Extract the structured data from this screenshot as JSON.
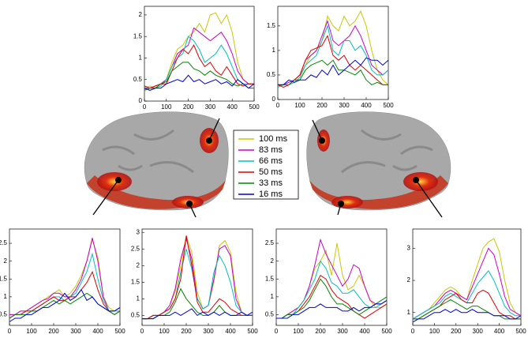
{
  "legend": [
    {
      "name": "100 ms",
      "color": "#c8c800"
    },
    {
      "name": "83 ms",
      "color": "#cc00cc"
    },
    {
      "name": "66 ms",
      "color": "#00c0c0"
    },
    {
      "name": "50 ms",
      "color": "#e00000"
    },
    {
      "name": "33 ms",
      "color": "#008800"
    },
    {
      "name": "16 ms",
      "color": "#0000e0"
    }
  ],
  "chart_data": [
    {
      "type": "line",
      "x": [
        0,
        25,
        50,
        75,
        100,
        125,
        150,
        175,
        200,
        225,
        250,
        275,
        300,
        325,
        350,
        375,
        400,
        425,
        450,
        475,
        500
      ],
      "xlim": [
        0,
        500
      ],
      "xticks": [
        0,
        100,
        200,
        300,
        400,
        500
      ],
      "ylim": [
        0,
        2.2
      ],
      "yticks": [
        0,
        0.5,
        1,
        1.5,
        2
      ],
      "series": [
        {
          "values": [
            0.3,
            0.35,
            0.3,
            0.4,
            0.5,
            0.9,
            1.2,
            1.3,
            1.5,
            1.6,
            1.8,
            1.6,
            2.0,
            2.05,
            1.8,
            2.0,
            1.6,
            0.9,
            0.5,
            0.4,
            0.4
          ]
        },
        {
          "values": [
            0.3,
            0.3,
            0.35,
            0.4,
            0.5,
            0.8,
            1.1,
            1.2,
            1.3,
            1.7,
            1.6,
            1.5,
            1.4,
            1.5,
            1.6,
            1.4,
            1.1,
            0.7,
            0.5,
            0.4,
            0.4
          ]
        },
        {
          "values": [
            0.3,
            0.3,
            0.3,
            0.35,
            0.5,
            0.8,
            1.0,
            1.1,
            1.5,
            1.4,
            1.2,
            0.9,
            1.0,
            1.1,
            1.3,
            1.1,
            0.8,
            0.5,
            0.4,
            0.4,
            0.4
          ]
        },
        {
          "values": [
            0.35,
            0.3,
            0.35,
            0.4,
            0.4,
            0.7,
            1.0,
            1.2,
            1.1,
            1.3,
            1.0,
            0.8,
            0.9,
            0.7,
            0.6,
            0.8,
            0.6,
            0.4,
            0.35,
            0.4,
            0.4
          ]
        },
        {
          "values": [
            0.25,
            0.3,
            0.3,
            0.4,
            0.45,
            0.7,
            0.8,
            0.9,
            0.9,
            0.75,
            0.7,
            0.6,
            0.7,
            0.6,
            0.55,
            0.5,
            0.4,
            0.35,
            0.4,
            0.3,
            0.3
          ]
        },
        {
          "values": [
            0.3,
            0.25,
            0.3,
            0.3,
            0.4,
            0.45,
            0.5,
            0.45,
            0.6,
            0.45,
            0.5,
            0.4,
            0.45,
            0.5,
            0.4,
            0.45,
            0.35,
            0.5,
            0.4,
            0.3,
            0.4
          ]
        }
      ]
    },
    {
      "type": "line",
      "x": [
        0,
        25,
        50,
        75,
        100,
        125,
        150,
        175,
        200,
        225,
        250,
        275,
        300,
        325,
        350,
        375,
        400,
        425,
        450,
        475,
        500
      ],
      "xlim": [
        0,
        500
      ],
      "xticks": [
        0,
        100,
        200,
        300,
        400,
        500
      ],
      "ylim": [
        0,
        1.9
      ],
      "yticks": [
        0,
        0.5,
        1,
        1.5
      ],
      "series": [
        {
          "values": [
            0.3,
            0.3,
            0.35,
            0.4,
            0.5,
            0.7,
            0.9,
            1.0,
            1.2,
            1.7,
            1.5,
            1.4,
            1.7,
            1.5,
            1.6,
            1.8,
            1.5,
            1.0,
            0.6,
            0.4,
            0.3
          ]
        },
        {
          "values": [
            0.3,
            0.3,
            0.35,
            0.4,
            0.5,
            0.8,
            0.9,
            1.0,
            1.3,
            1.6,
            1.2,
            1.1,
            1.2,
            1.3,
            1.5,
            1.3,
            1.0,
            0.7,
            0.6,
            0.5,
            0.6
          ]
        },
        {
          "values": [
            0.25,
            0.3,
            0.3,
            0.35,
            0.45,
            0.7,
            0.8,
            0.9,
            1.2,
            1.5,
            1.0,
            0.9,
            1.2,
            1.2,
            1.0,
            1.1,
            0.9,
            0.6,
            0.5,
            0.5,
            0.6
          ]
        },
        {
          "values": [
            0.3,
            0.25,
            0.3,
            0.4,
            0.5,
            0.8,
            1.0,
            1.05,
            1.1,
            1.3,
            0.9,
            0.8,
            0.9,
            0.7,
            0.6,
            0.7,
            0.6,
            0.5,
            0.4,
            0.3,
            0.3
          ]
        },
        {
          "values": [
            0.3,
            0.3,
            0.3,
            0.4,
            0.4,
            0.6,
            0.7,
            0.75,
            0.8,
            0.7,
            0.8,
            0.6,
            0.6,
            0.55,
            0.5,
            0.6,
            0.4,
            0.3,
            0.35,
            0.3,
            0.3
          ]
        },
        {
          "values": [
            0.3,
            0.3,
            0.4,
            0.35,
            0.4,
            0.4,
            0.5,
            0.45,
            0.6,
            0.5,
            0.7,
            0.5,
            0.6,
            0.7,
            0.8,
            0.7,
            0.85,
            0.8,
            0.8,
            0.7,
            0.8
          ]
        }
      ]
    },
    {
      "type": "line",
      "x": [
        0,
        25,
        50,
        75,
        100,
        125,
        150,
        175,
        200,
        225,
        250,
        275,
        300,
        325,
        350,
        375,
        400,
        425,
        450,
        475,
        500
      ],
      "xlim": [
        0,
        500
      ],
      "xticks": [
        0,
        100,
        200,
        300,
        400,
        500
      ],
      "ylim": [
        0.2,
        2.9
      ],
      "yticks": [
        0.5,
        1,
        1.5,
        2,
        2.5
      ],
      "series": [
        {
          "values": [
            0.5,
            0.5,
            0.6,
            0.6,
            0.7,
            0.8,
            0.9,
            1.0,
            1.1,
            1.2,
            1.0,
            1.1,
            1.3,
            1.6,
            2.0,
            2.6,
            2.1,
            1.0,
            0.7,
            0.6,
            0.7
          ]
        },
        {
          "values": [
            0.5,
            0.5,
            0.6,
            0.6,
            0.7,
            0.8,
            0.9,
            0.95,
            1.1,
            1.1,
            1.0,
            1.0,
            1.2,
            1.5,
            2.0,
            2.65,
            2.0,
            1.0,
            0.6,
            0.6,
            0.7
          ]
        },
        {
          "values": [
            0.4,
            0.5,
            0.5,
            0.6,
            0.6,
            0.7,
            0.8,
            0.9,
            1.0,
            1.0,
            0.9,
            1.0,
            1.1,
            1.4,
            1.7,
            2.2,
            1.5,
            0.9,
            0.6,
            0.6,
            0.6
          ]
        },
        {
          "values": [
            0.4,
            0.5,
            0.5,
            0.6,
            0.6,
            0.7,
            0.8,
            0.9,
            1.0,
            0.9,
            0.9,
            1.0,
            1.0,
            1.2,
            1.4,
            1.7,
            1.2,
            0.8,
            0.6,
            0.5,
            0.6
          ]
        },
        {
          "values": [
            0.4,
            0.5,
            0.5,
            0.5,
            0.6,
            0.6,
            0.7,
            0.8,
            0.9,
            0.8,
            0.9,
            0.8,
            0.9,
            1.0,
            1.1,
            1.0,
            0.8,
            0.7,
            0.6,
            0.5,
            0.6
          ]
        },
        {
          "values": [
            0.3,
            0.4,
            0.4,
            0.5,
            0.5,
            0.6,
            0.7,
            0.7,
            0.8,
            0.9,
            1.1,
            0.9,
            1.0,
            1.2,
            0.9,
            1.0,
            0.8,
            0.7,
            0.6,
            0.6,
            0.7
          ]
        }
      ]
    },
    {
      "type": "line",
      "x": [
        0,
        25,
        50,
        75,
        100,
        125,
        150,
        175,
        200,
        225,
        250,
        275,
        300,
        325,
        350,
        375,
        400,
        425,
        450,
        475,
        500
      ],
      "xlim": [
        0,
        500
      ],
      "xticks": [
        0,
        100,
        200,
        300,
        400,
        500
      ],
      "ylim": [
        0.2,
        3.1
      ],
      "yticks": [
        0.5,
        1,
        1.5,
        2,
        2.5,
        3
      ],
      "series": [
        {
          "values": [
            0.4,
            0.4,
            0.5,
            0.5,
            0.6,
            0.8,
            1.2,
            2.0,
            2.9,
            2.4,
            1.2,
            0.7,
            0.8,
            1.5,
            2.6,
            2.75,
            2.4,
            1.2,
            0.6,
            0.5,
            0.5
          ]
        },
        {
          "values": [
            0.4,
            0.4,
            0.5,
            0.5,
            0.6,
            0.8,
            1.3,
            2.2,
            2.8,
            2.2,
            1.0,
            0.7,
            0.8,
            1.6,
            2.5,
            2.6,
            2.3,
            1.0,
            0.6,
            0.5,
            0.5
          ]
        },
        {
          "values": [
            0.4,
            0.4,
            0.5,
            0.5,
            0.6,
            0.7,
            1.0,
            1.8,
            2.5,
            1.9,
            1.0,
            0.7,
            0.8,
            1.8,
            2.3,
            2.0,
            1.5,
            0.8,
            0.6,
            0.5,
            0.5
          ]
        },
        {
          "values": [
            0.4,
            0.4,
            0.5,
            0.5,
            0.6,
            0.7,
            1.0,
            1.6,
            2.9,
            2.0,
            0.9,
            0.6,
            0.6,
            0.8,
            1.0,
            0.9,
            0.7,
            0.6,
            0.5,
            0.5,
            0.5
          ]
        },
        {
          "values": [
            0.4,
            0.4,
            0.4,
            0.5,
            0.5,
            0.6,
            0.9,
            1.3,
            1.0,
            0.8,
            0.6,
            0.5,
            0.5,
            0.6,
            0.8,
            0.6,
            0.5,
            0.5,
            0.5,
            0.5,
            0.5
          ]
        },
        {
          "values": [
            0.4,
            0.4,
            0.4,
            0.5,
            0.5,
            0.5,
            0.6,
            0.5,
            0.6,
            0.7,
            0.5,
            0.6,
            0.5,
            0.6,
            0.5,
            0.6,
            0.5,
            0.5,
            0.6,
            0.5,
            0.6
          ]
        }
      ]
    },
    {
      "type": "line",
      "x": [
        0,
        25,
        50,
        75,
        100,
        125,
        150,
        175,
        200,
        225,
        250,
        275,
        300,
        325,
        350,
        375,
        400,
        425,
        450,
        475,
        500
      ],
      "xlim": [
        0,
        500
      ],
      "xticks": [
        0,
        100,
        200,
        300,
        400,
        500
      ],
      "ylim": [
        0.2,
        2.9
      ],
      "yticks": [
        0.5,
        1,
        1.5,
        2,
        2.5
      ],
      "series": [
        {
          "values": [
            0.4,
            0.4,
            0.5,
            0.6,
            0.7,
            0.9,
            1.3,
            1.8,
            2.0,
            2.3,
            1.6,
            2.5,
            1.6,
            1.2,
            1.3,
            1.6,
            1.3,
            0.9,
            0.7,
            0.7,
            0.8
          ]
        },
        {
          "values": [
            0.4,
            0.4,
            0.5,
            0.6,
            0.7,
            0.9,
            1.3,
            1.9,
            2.6,
            2.2,
            1.9,
            1.6,
            1.3,
            1.5,
            1.9,
            1.8,
            1.3,
            0.9,
            0.8,
            0.8,
            0.9
          ]
        },
        {
          "values": [
            0.4,
            0.4,
            0.5,
            0.5,
            0.7,
            0.9,
            1.2,
            1.5,
            2.0,
            1.8,
            1.4,
            1.3,
            1.1,
            1.1,
            1.2,
            1.0,
            0.8,
            0.7,
            0.7,
            0.8,
            0.9
          ]
        },
        {
          "values": [
            0.4,
            0.4,
            0.5,
            0.5,
            0.6,
            0.8,
            1.0,
            1.3,
            1.6,
            1.5,
            1.2,
            1.0,
            0.9,
            0.8,
            0.6,
            0.5,
            0.4,
            0.5,
            0.6,
            0.7,
            0.8
          ]
        },
        {
          "values": [
            0.4,
            0.4,
            0.5,
            0.5,
            0.6,
            0.7,
            0.9,
            1.2,
            1.5,
            1.3,
            1.0,
            0.8,
            0.8,
            0.7,
            0.6,
            0.5,
            0.6,
            0.7,
            0.8,
            0.9,
            1.0
          ]
        },
        {
          "values": [
            0.4,
            0.4,
            0.4,
            0.5,
            0.5,
            0.6,
            0.7,
            0.7,
            0.8,
            0.7,
            0.7,
            0.7,
            0.6,
            0.6,
            0.7,
            0.6,
            0.7,
            0.7,
            0.8,
            0.8,
            0.9
          ]
        }
      ]
    },
    {
      "type": "line",
      "x": [
        0,
        25,
        50,
        75,
        100,
        125,
        150,
        175,
        200,
        225,
        250,
        275,
        300,
        325,
        350,
        375,
        400,
        425,
        450,
        475,
        500
      ],
      "xlim": [
        0,
        500
      ],
      "xticks": [
        0,
        100,
        200,
        300,
        400,
        500
      ],
      "ylim": [
        0.6,
        3.6
      ],
      "yticks": [
        1,
        2,
        3
      ],
      "series": [
        {
          "values": [
            0.8,
            0.9,
            1.0,
            1.1,
            1.3,
            1.5,
            1.7,
            1.8,
            1.7,
            1.5,
            1.4,
            2.0,
            2.5,
            3.0,
            3.2,
            3.3,
            2.9,
            2.0,
            1.3,
            1.0,
            0.9
          ]
        },
        {
          "values": [
            0.8,
            0.9,
            1.0,
            1.1,
            1.2,
            1.4,
            1.6,
            1.7,
            1.6,
            1.5,
            1.4,
            1.8,
            2.2,
            2.6,
            3.0,
            2.8,
            2.2,
            1.5,
            1.1,
            1.0,
            0.9
          ]
        },
        {
          "values": [
            0.8,
            0.9,
            1.0,
            1.1,
            1.2,
            1.3,
            1.5,
            1.6,
            1.5,
            1.4,
            1.3,
            1.6,
            1.9,
            2.1,
            2.3,
            2.0,
            1.6,
            1.2,
            1.0,
            0.9,
            0.9
          ]
        },
        {
          "values": [
            0.8,
            0.8,
            0.9,
            1.0,
            1.1,
            1.2,
            1.4,
            1.5,
            1.6,
            1.4,
            1.3,
            1.3,
            1.6,
            1.7,
            1.6,
            1.3,
            1.0,
            0.9,
            0.9,
            0.8,
            0.8
          ]
        },
        {
          "values": [
            0.8,
            0.8,
            0.9,
            1.0,
            1.1,
            1.2,
            1.3,
            1.4,
            1.3,
            1.2,
            1.1,
            1.2,
            1.2,
            1.1,
            1.0,
            0.9,
            0.9,
            0.8,
            0.8,
            0.8,
            0.8
          ]
        },
        {
          "values": [
            0.7,
            0.8,
            0.8,
            0.9,
            1.0,
            1.0,
            1.1,
            1.0,
            1.1,
            1.0,
            1.0,
            1.1,
            1.0,
            1.0,
            1.0,
            0.9,
            0.9,
            0.9,
            0.8,
            0.8,
            0.9
          ]
        }
      ]
    }
  ]
}
